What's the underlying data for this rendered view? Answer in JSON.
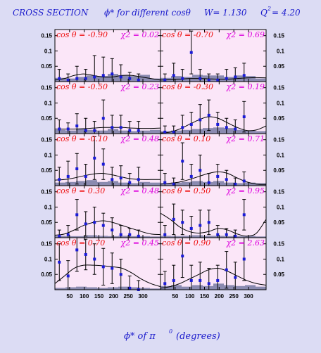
{
  "title": {
    "part1": "CROSS SECTION",
    "part2": "ϕ* for different cosθ",
    "part3": "W= 1.130",
    "part4": "Q",
    "part4_sup": "2",
    "part4_val": "= 4.20"
  },
  "xaxis_title": "ϕ* of π",
  "xaxis_sup": "0",
  "xaxis_unit": "(degrees)",
  "chart_data": {
    "type": "scatter",
    "layout": "5x2 panels",
    "x_ticks": [
      50,
      100,
      150,
      200,
      250,
      300
    ],
    "y_ticks": [
      "0.15",
      "0.1",
      "0.05"
    ],
    "xlim": [
      0,
      360
    ],
    "ylim": [
      0,
      0.17
    ],
    "panels": [
      {
        "cos_label": "cos θ = -0.90",
        "chi_label": "χ2 = 0.02",
        "points": [
          [
            15,
            0.01,
            0.03
          ],
          [
            45,
            0.005,
            0.02
          ],
          [
            75,
            0.01,
            0.04
          ],
          [
            105,
            0.01,
            0.03
          ],
          [
            135,
            0.015,
            0.07
          ],
          [
            165,
            0.02,
            0.06
          ],
          [
            195,
            0.025,
            0.05
          ],
          [
            225,
            0.015,
            0.04
          ],
          [
            255,
            0.01,
            0.02
          ],
          [
            285,
            0.005,
            0.02
          ]
        ],
        "fit": [
          0.005,
          0.01,
          0.02,
          0.025,
          0.02,
          0.015,
          0.015,
          0.02,
          0.02,
          0.015,
          0.01,
          0.005
        ],
        "bg": [
          0.012,
          0.01,
          0.015,
          0.02,
          0.018,
          0.025,
          0.02,
          0.018,
          0.022,
          0.01
        ]
      },
      {
        "cos_label": "cos θ = -0.70",
        "chi_label": "χ2 = 0.69",
        "points": [
          [
            15,
            0.005,
            0.02
          ],
          [
            45,
            0.02,
            0.04
          ],
          [
            75,
            0.01,
            0.03
          ],
          [
            105,
            0.095,
            0.07
          ],
          [
            135,
            0.01,
            0.03
          ],
          [
            165,
            0.005,
            0.02
          ],
          [
            195,
            0.005,
            0.02
          ],
          [
            225,
            0.01,
            0.03
          ],
          [
            255,
            0.015,
            0.03
          ],
          [
            285,
            0.02,
            0.04
          ]
        ],
        "fit": [
          0.005,
          0.006,
          0.008,
          0.01,
          0.01,
          0.009,
          0.008,
          0.008,
          0.01,
          0.012,
          0.013,
          0.012
        ],
        "bg": [
          0.012,
          0.018,
          0.015,
          0.022,
          0.02,
          0.02,
          0.015,
          0.02,
          0.018,
          0.01
        ]
      },
      {
        "cos_label": "cos θ = -0.50",
        "chi_label": "χ2 = 0.23",
        "points": [
          [
            15,
            0.015,
            0.03
          ],
          [
            45,
            0.015,
            0.02
          ],
          [
            75,
            0.025,
            0.04
          ],
          [
            105,
            0.01,
            0.04
          ],
          [
            135,
            0.01,
            0.03
          ],
          [
            165,
            0.05,
            0.06
          ],
          [
            195,
            0.02,
            0.04
          ],
          [
            225,
            0.02,
            0.04
          ],
          [
            255,
            0.01,
            0.03
          ],
          [
            285,
            0.01,
            0.03
          ]
        ],
        "fit": [
          0.015,
          0.015,
          0.015,
          0.016,
          0.018,
          0.02,
          0.02,
          0.02,
          0.018,
          0.017,
          0.017,
          0.018
        ],
        "bg": [
          0.012,
          0.01,
          0.015,
          0.012,
          0.01,
          0.015,
          0.01,
          0.008,
          0.01,
          0.012
        ]
      },
      {
        "cos_label": "cos θ = -0.30",
        "chi_label": "χ2 = 0.19",
        "points": [
          [
            15,
            0.005,
            0.02
          ],
          [
            45,
            0.005,
            0.02
          ],
          [
            75,
            0.02,
            0.04
          ],
          [
            105,
            0.03,
            0.04
          ],
          [
            135,
            0.045,
            0.05
          ],
          [
            165,
            0.06,
            0.05
          ],
          [
            195,
            0.03,
            0.04
          ],
          [
            225,
            0.02,
            0.03
          ],
          [
            255,
            0.015,
            0.03
          ],
          [
            285,
            0.055,
            0.05
          ]
        ],
        "fit": [
          0.002,
          0.005,
          0.015,
          0.03,
          0.045,
          0.055,
          0.05,
          0.035,
          0.02,
          0.01,
          0.012,
          0.025
        ],
        "bg": [
          0.008,
          0.01,
          0.012,
          0.015,
          0.018,
          0.02,
          0.018,
          0.012,
          0.01,
          0.008
        ]
      },
      {
        "cos_label": "cos θ = -0.10",
        "chi_label": "χ2 = 0.48",
        "points": [
          [
            15,
            0.02,
            0.04
          ],
          [
            45,
            0.03,
            0.05
          ],
          [
            75,
            0.055,
            0.05
          ],
          [
            105,
            0.03,
            0.04
          ],
          [
            135,
            0.09,
            0.07
          ],
          [
            165,
            0.07,
            0.05
          ],
          [
            195,
            0.02,
            0.04
          ],
          [
            225,
            0.025,
            0.04
          ],
          [
            255,
            0.01,
            0.03
          ],
          [
            285,
            0.02,
            0.04
          ]
        ],
        "fit": [
          0.018,
          0.02,
          0.025,
          0.032,
          0.038,
          0.04,
          0.035,
          0.028,
          0.022,
          0.02,
          0.02,
          0.02
        ],
        "bg": [
          0.01,
          0.012,
          0.015,
          0.018,
          0.012,
          0.015,
          0.01,
          0.008,
          0.012,
          0.01
        ]
      },
      {
        "cos_label": "cos θ = 0.10",
        "chi_label": "χ2 = 0.71",
        "points": [
          [
            15,
            0.01,
            0.03
          ],
          [
            45,
            0.005,
            0.02
          ],
          [
            75,
            0.08,
            0.06
          ],
          [
            105,
            0.03,
            0.04
          ],
          [
            135,
            0.05,
            0.05
          ],
          [
            165,
            0.01,
            0.03
          ],
          [
            195,
            0.03,
            0.04
          ],
          [
            225,
            0.02,
            0.03
          ],
          [
            255,
            0.005,
            0.02
          ],
          [
            285,
            0.015,
            0.03
          ]
        ],
        "fit": [
          0.005,
          0.008,
          0.012,
          0.02,
          0.03,
          0.04,
          0.045,
          0.04,
          0.025,
          0.012,
          0.005,
          0.004
        ],
        "bg": [
          0.008,
          0.01,
          0.012,
          0.015,
          0.012,
          0.015,
          0.01,
          0.008,
          0.01,
          0.008
        ]
      },
      {
        "cos_label": "cos θ = 0.30",
        "chi_label": "χ2 = 0.48",
        "points": [
          [
            15,
            0.005,
            0.02
          ],
          [
            45,
            0.01,
            0.03
          ],
          [
            75,
            0.075,
            0.05
          ],
          [
            105,
            0.045,
            0.04
          ],
          [
            135,
            0.05,
            0.05
          ],
          [
            165,
            0.04,
            0.04
          ],
          [
            195,
            0.025,
            0.04
          ],
          [
            225,
            0.01,
            0.03
          ],
          [
            255,
            0.01,
            0.02
          ],
          [
            285,
            0.005,
            0.02
          ]
        ],
        "fit": [
          0.008,
          0.012,
          0.025,
          0.04,
          0.05,
          0.055,
          0.05,
          0.04,
          0.03,
          0.02,
          0.012,
          0.01
        ],
        "bg": [
          0.006,
          0.005,
          0.005,
          0.008,
          0.006,
          0.005,
          0.006,
          0.005,
          0.005,
          0.004
        ]
      },
      {
        "cos_label": "cos θ = 0.50",
        "chi_label": "χ2 = 0.95",
        "points": [
          [
            15,
            0.01,
            0.03
          ],
          [
            45,
            0.06,
            0.05
          ],
          [
            75,
            0.05,
            0.04
          ],
          [
            105,
            0.03,
            0.04
          ],
          [
            135,
            0.04,
            0.05
          ],
          [
            165,
            0.05,
            0.04
          ],
          [
            195,
            0.01,
            0.03
          ],
          [
            225,
            0.01,
            0.02
          ],
          [
            255,
            0.005,
            0.02
          ],
          [
            285,
            0.075,
            0.05
          ]
        ],
        "fit": [
          0.08,
          0.06,
          0.035,
          0.02,
          0.015,
          0.02,
          0.03,
          0.025,
          0.012,
          0.005,
          0.015,
          0.06
        ],
        "bg": [
          0.006,
          0.005,
          0.006,
          0.008,
          0.006,
          0.006,
          0.005,
          0.005,
          0.006,
          0.004
        ]
      },
      {
        "cos_label": "cos θ = 0.70",
        "chi_label": "χ2 = 0.45",
        "points": [
          [
            15,
            0.09,
            0.06
          ],
          [
            45,
            0.045,
            0.05
          ],
          [
            75,
            0.13,
            0.07
          ],
          [
            105,
            0.115,
            0.05
          ],
          [
            135,
            0.1,
            0.05
          ],
          [
            165,
            0.075,
            0.06
          ],
          [
            195,
            0.07,
            0.05
          ],
          [
            225,
            0.05,
            0.05
          ],
          [
            255,
            0.005,
            0.04
          ],
          [
            285,
            0.0,
            0.03
          ]
        ],
        "fit": [
          0.02,
          0.045,
          0.07,
          0.08,
          0.08,
          0.078,
          0.075,
          0.07,
          0.055,
          0.035,
          0.02,
          0.01
        ],
        "bg": [
          0.006,
          0.008,
          0.01,
          0.008,
          0.006,
          0.008,
          0.01,
          0.008,
          0.006,
          0.004
        ]
      },
      {
        "cos_label": "cos θ = 0.90",
        "chi_label": "χ2 = 2.63",
        "points": [
          [
            15,
            0.02,
            0.04
          ],
          [
            45,
            0.03,
            0.05
          ],
          [
            75,
            0.11,
            0.07
          ],
          [
            105,
            0.03,
            0.05
          ],
          [
            135,
            0.03,
            0.06
          ],
          [
            165,
            0.02,
            0.05
          ],
          [
            195,
            0.03,
            0.05
          ],
          [
            225,
            0.065,
            0.06
          ],
          [
            255,
            0.04,
            0.05
          ],
          [
            285,
            0.1,
            0.07
          ]
        ],
        "fit": [
          0.005,
          0.01,
          0.02,
          0.035,
          0.05,
          0.065,
          0.07,
          0.06,
          0.045,
          0.03,
          0.02,
          0.015
        ],
        "bg": [
          0.012,
          0.015,
          0.01,
          0.015,
          0.012,
          0.02,
          0.015,
          0.012,
          0.015,
          0.01
        ]
      }
    ]
  }
}
